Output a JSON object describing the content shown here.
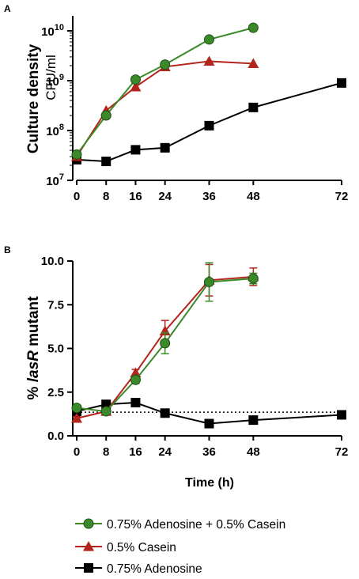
{
  "figure": {
    "panel_a": "A",
    "panel_b": "B",
    "ylabel_a_main": "Culture density",
    "ylabel_a_unit": "CFU/ml",
    "ylabel_b_pre": "% ",
    "ylabel_b_italic": "lasR",
    "ylabel_b_post": " mutant",
    "xlabel": "Time (h)"
  },
  "colors": {
    "green": "#3a8a2a",
    "red": "#b3241c",
    "black": "#000000"
  },
  "chart_data": [
    {
      "type": "line",
      "panel": "A",
      "title": "",
      "xlabel": "",
      "ylabel": "Culture density CFU/ml",
      "yscale": "log",
      "ylim": [
        10000000,
        20000000000
      ],
      "xlim": [
        0,
        72
      ],
      "x_ticks": [
        0,
        8,
        16,
        24,
        36,
        48,
        72
      ],
      "y_ticks": [
        {
          "value": 10000000,
          "base": "10",
          "exp": "7"
        },
        {
          "value": 100000000,
          "base": "10",
          "exp": "8"
        },
        {
          "value": 1000000000,
          "base": "10",
          "exp": "9"
        },
        {
          "value": 10000000000,
          "base": "10",
          "exp": "10"
        }
      ],
      "grid": false,
      "series": [
        {
          "name": "0.75% Adenosine + 0.5% Casein",
          "color_key": "green",
          "marker": "circle",
          "x": [
            0,
            8,
            16,
            24,
            36,
            48
          ],
          "y": [
            33000000,
            200000000,
            1050000000,
            2100000000,
            6700000000,
            11500000000
          ]
        },
        {
          "name": "0.5% Casein",
          "color_key": "red",
          "marker": "triangle",
          "x": [
            0,
            8,
            16,
            24,
            36,
            48
          ],
          "y": [
            30000000,
            250000000,
            750000000,
            1900000000,
            2450000000,
            2200000000
          ]
        },
        {
          "name": "0.75% Adenosine",
          "color_key": "black",
          "marker": "square",
          "x": [
            0,
            8,
            16,
            24,
            36,
            48,
            72
          ],
          "y": [
            26000000,
            24000000,
            41000000,
            45000000,
            125000000,
            290000000,
            900000000
          ],
          "err": [
            0,
            0,
            6000000,
            0,
            0,
            0,
            0
          ]
        }
      ]
    },
    {
      "type": "line",
      "panel": "B",
      "title": "",
      "xlabel": "Time (h)",
      "ylabel": "% lasR mutant",
      "ylim": [
        0,
        10
      ],
      "xlim": [
        0,
        72
      ],
      "x_ticks": [
        0,
        8,
        16,
        24,
        36,
        48,
        72
      ],
      "y_ticks": [
        0.0,
        2.5,
        5.0,
        7.5,
        10.0
      ],
      "y_tick_labels": [
        "0.0",
        "2.5",
        "5.0",
        "7.5",
        "10.0"
      ],
      "grid": false,
      "reference_line": {
        "y": 1.35,
        "style": "dotted"
      },
      "series": [
        {
          "name": "0.75% Adenosine + 0.5% Casein",
          "color_key": "green",
          "marker": "circle",
          "x": [
            0,
            8,
            16,
            24,
            36,
            48
          ],
          "y": [
            1.6,
            1.4,
            3.2,
            5.3,
            8.8,
            9.0
          ],
          "err": [
            0.1,
            0.1,
            0.2,
            0.6,
            1.1,
            0.3
          ]
        },
        {
          "name": "0.5% Casein",
          "color_key": "red",
          "marker": "triangle",
          "x": [
            0,
            8,
            16,
            24,
            36,
            48
          ],
          "y": [
            1.0,
            1.4,
            3.6,
            6.0,
            8.9,
            9.1
          ],
          "err": [
            0.1,
            0.1,
            0.2,
            0.6,
            0.9,
            0.5
          ]
        },
        {
          "name": "0.75% Adenosine",
          "color_key": "black",
          "marker": "square",
          "x": [
            0,
            8,
            16,
            24,
            36,
            48,
            72
          ],
          "y": [
            1.4,
            1.8,
            1.9,
            1.3,
            0.7,
            0.9,
            1.2
          ],
          "err": [
            0.1,
            0.1,
            0.1,
            0.1,
            0.1,
            0.1,
            0.1
          ]
        }
      ]
    }
  ],
  "legend": {
    "placement": "bottom",
    "items": [
      {
        "label": "0.75% Adenosine + 0.5% Casein",
        "color_key": "green",
        "marker": "circle"
      },
      {
        "label": "0.5% Casein",
        "color_key": "red",
        "marker": "triangle"
      },
      {
        "label": "0.75% Adenosine",
        "color_key": "black",
        "marker": "square"
      }
    ]
  }
}
